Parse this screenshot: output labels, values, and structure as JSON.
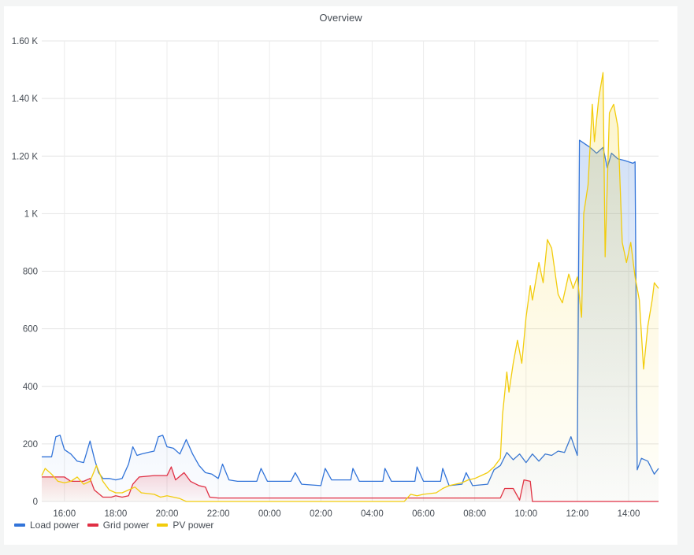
{
  "panel": {
    "title": "Overview"
  },
  "chart_data": {
    "type": "area",
    "title": "Overview",
    "ylim": [
      0,
      1600
    ],
    "yticks": [
      {
        "v": 0,
        "label": "0"
      },
      {
        "v": 200,
        "label": "200"
      },
      {
        "v": 400,
        "label": "400"
      },
      {
        "v": 600,
        "label": "600"
      },
      {
        "v": 800,
        "label": "800"
      },
      {
        "v": 1000,
        "label": "1 K"
      },
      {
        "v": 1200,
        "label": "1.20 K"
      },
      {
        "v": 1400,
        "label": "1.40 K"
      },
      {
        "v": 1600,
        "label": "1.60 K"
      }
    ],
    "xrange": [
      "15:07",
      "15:10"
    ],
    "xticks": [
      "16:00",
      "18:00",
      "20:00",
      "22:00",
      "00:00",
      "02:00",
      "04:00",
      "06:00",
      "08:00",
      "10:00",
      "12:00",
      "14:00"
    ],
    "grid": true,
    "legend_position": "bottom-left",
    "series": [
      {
        "name": "Load power",
        "color": "#3274d9",
        "points": [
          [
            "15:07",
            155
          ],
          [
            "15:30",
            155
          ],
          [
            "15:40",
            225
          ],
          [
            "15:50",
            230
          ],
          [
            "16:00",
            180
          ],
          [
            "16:15",
            165
          ],
          [
            "16:30",
            140
          ],
          [
            "16:45",
            135
          ],
          [
            "17:00",
            210
          ],
          [
            "17:10",
            150
          ],
          [
            "17:20",
            100
          ],
          [
            "17:30",
            80
          ],
          [
            "17:45",
            80
          ],
          [
            "18:00",
            75
          ],
          [
            "18:15",
            80
          ],
          [
            "18:30",
            130
          ],
          [
            "18:40",
            190
          ],
          [
            "18:50",
            160
          ],
          [
            "19:00",
            165
          ],
          [
            "19:15",
            170
          ],
          [
            "19:30",
            175
          ],
          [
            "19:40",
            225
          ],
          [
            "19:50",
            230
          ],
          [
            "20:00",
            190
          ],
          [
            "20:15",
            185
          ],
          [
            "20:30",
            165
          ],
          [
            "20:45",
            215
          ],
          [
            "21:00",
            165
          ],
          [
            "21:15",
            125
          ],
          [
            "21:30",
            100
          ],
          [
            "21:45",
            95
          ],
          [
            "22:00",
            80
          ],
          [
            "22:10",
            130
          ],
          [
            "22:25",
            75
          ],
          [
            "22:45",
            70
          ],
          [
            "23:30",
            70
          ],
          [
            "23:40",
            115
          ],
          [
            "23:55",
            70
          ],
          [
            "00:50",
            70
          ],
          [
            "01:00",
            100
          ],
          [
            "01:15",
            60
          ],
          [
            "02:00",
            55
          ],
          [
            "02:10",
            115
          ],
          [
            "02:25",
            75
          ],
          [
            "03:10",
            75
          ],
          [
            "03:15",
            115
          ],
          [
            "03:30",
            70
          ],
          [
            "04:25",
            70
          ],
          [
            "04:30",
            115
          ],
          [
            "04:45",
            70
          ],
          [
            "05:40",
            70
          ],
          [
            "05:45",
            120
          ],
          [
            "06:00",
            70
          ],
          [
            "06:40",
            70
          ],
          [
            "06:45",
            115
          ],
          [
            "07:00",
            55
          ],
          [
            "07:30",
            60
          ],
          [
            "07:40",
            100
          ],
          [
            "07:55",
            55
          ],
          [
            "08:30",
            60
          ],
          [
            "08:45",
            110
          ],
          [
            "09:00",
            125
          ],
          [
            "09:15",
            170
          ],
          [
            "09:30",
            145
          ],
          [
            "09:45",
            165
          ],
          [
            "10:00",
            135
          ],
          [
            "10:15",
            165
          ],
          [
            "10:30",
            140
          ],
          [
            "10:45",
            165
          ],
          [
            "11:00",
            160
          ],
          [
            "11:15",
            175
          ],
          [
            "11:30",
            170
          ],
          [
            "11:45",
            225
          ],
          [
            "12:00",
            160
          ],
          [
            "12:05",
            1255
          ],
          [
            "12:30",
            1230
          ],
          [
            "12:45",
            1210
          ],
          [
            "13:00",
            1230
          ],
          [
            "13:10",
            1160
          ],
          [
            "13:20",
            1210
          ],
          [
            "13:35",
            1190
          ],
          [
            "13:50",
            1185
          ],
          [
            "14:10",
            1175
          ],
          [
            "14:15",
            1180
          ],
          [
            "14:20",
            110
          ],
          [
            "14:30",
            150
          ],
          [
            "14:45",
            140
          ],
          [
            "15:00",
            95
          ],
          [
            "15:10",
            115
          ]
        ]
      },
      {
        "name": "Grid power",
        "color": "#e02f44",
        "points": [
          [
            "15:07",
            85
          ],
          [
            "15:30",
            85
          ],
          [
            "16:00",
            85
          ],
          [
            "16:15",
            70
          ],
          [
            "16:45",
            70
          ],
          [
            "17:00",
            80
          ],
          [
            "17:10",
            40
          ],
          [
            "17:30",
            15
          ],
          [
            "17:50",
            15
          ],
          [
            "18:00",
            20
          ],
          [
            "18:15",
            15
          ],
          [
            "18:30",
            20
          ],
          [
            "18:40",
            60
          ],
          [
            "18:55",
            85
          ],
          [
            "19:30",
            90
          ],
          [
            "20:00",
            90
          ],
          [
            "20:10",
            120
          ],
          [
            "20:20",
            75
          ],
          [
            "20:40",
            100
          ],
          [
            "20:55",
            70
          ],
          [
            "21:15",
            55
          ],
          [
            "21:30",
            50
          ],
          [
            "21:40",
            15
          ],
          [
            "22:00",
            12
          ],
          [
            "00:00",
            12
          ],
          [
            "02:00",
            12
          ],
          [
            "04:00",
            12
          ],
          [
            "06:00",
            12
          ],
          [
            "08:00",
            12
          ],
          [
            "09:00",
            12
          ],
          [
            "09:10",
            45
          ],
          [
            "09:30",
            45
          ],
          [
            "09:45",
            5
          ],
          [
            "09:55",
            75
          ],
          [
            "10:10",
            70
          ],
          [
            "10:15",
            0
          ],
          [
            "15:10",
            0
          ]
        ]
      },
      {
        "name": "PV power",
        "color": "#f2cc0c",
        "points": [
          [
            "15:07",
            90
          ],
          [
            "15:15",
            115
          ],
          [
            "15:30",
            95
          ],
          [
            "15:45",
            70
          ],
          [
            "16:00",
            65
          ],
          [
            "16:15",
            70
          ],
          [
            "16:30",
            85
          ],
          [
            "16:45",
            60
          ],
          [
            "17:00",
            70
          ],
          [
            "17:15",
            125
          ],
          [
            "17:30",
            70
          ],
          [
            "17:45",
            40
          ],
          [
            "18:00",
            30
          ],
          [
            "18:15",
            30
          ],
          [
            "18:30",
            40
          ],
          [
            "18:45",
            50
          ],
          [
            "19:00",
            30
          ],
          [
            "19:30",
            25
          ],
          [
            "19:45",
            15
          ],
          [
            "20:00",
            20
          ],
          [
            "20:30",
            10
          ],
          [
            "20:45",
            0
          ],
          [
            "23:00",
            0
          ],
          [
            "02:00",
            0
          ],
          [
            "05:15",
            0
          ],
          [
            "05:30",
            25
          ],
          [
            "05:45",
            20
          ],
          [
            "06:00",
            25
          ],
          [
            "06:30",
            30
          ],
          [
            "06:45",
            45
          ],
          [
            "07:00",
            55
          ],
          [
            "07:30",
            65
          ],
          [
            "07:45",
            75
          ],
          [
            "08:00",
            80
          ],
          [
            "08:15",
            90
          ],
          [
            "08:30",
            100
          ],
          [
            "08:45",
            120
          ],
          [
            "09:00",
            150
          ],
          [
            "09:05",
            300
          ],
          [
            "09:15",
            450
          ],
          [
            "09:20",
            380
          ],
          [
            "09:30",
            480
          ],
          [
            "09:40",
            560
          ],
          [
            "09:50",
            480
          ],
          [
            "10:00",
            640
          ],
          [
            "10:10",
            750
          ],
          [
            "10:15",
            700
          ],
          [
            "10:30",
            830
          ],
          [
            "10:40",
            760
          ],
          [
            "10:50",
            910
          ],
          [
            "11:00",
            880
          ],
          [
            "11:15",
            720
          ],
          [
            "11:25",
            690
          ],
          [
            "11:40",
            790
          ],
          [
            "11:50",
            740
          ],
          [
            "12:00",
            780
          ],
          [
            "12:10",
            640
          ],
          [
            "12:15",
            1000
          ],
          [
            "12:25",
            1100
          ],
          [
            "12:35",
            1380
          ],
          [
            "12:40",
            1250
          ],
          [
            "12:50",
            1400
          ],
          [
            "13:00",
            1490
          ],
          [
            "13:05",
            850
          ],
          [
            "13:15",
            1350
          ],
          [
            "13:25",
            1380
          ],
          [
            "13:35",
            1300
          ],
          [
            "13:45",
            900
          ],
          [
            "13:55",
            830
          ],
          [
            "14:05",
            900
          ],
          [
            "14:15",
            780
          ],
          [
            "14:25",
            700
          ],
          [
            "14:35",
            460
          ],
          [
            "14:45",
            610
          ],
          [
            "14:55",
            700
          ],
          [
            "15:00",
            760
          ],
          [
            "15:10",
            740
          ]
        ]
      }
    ]
  }
}
